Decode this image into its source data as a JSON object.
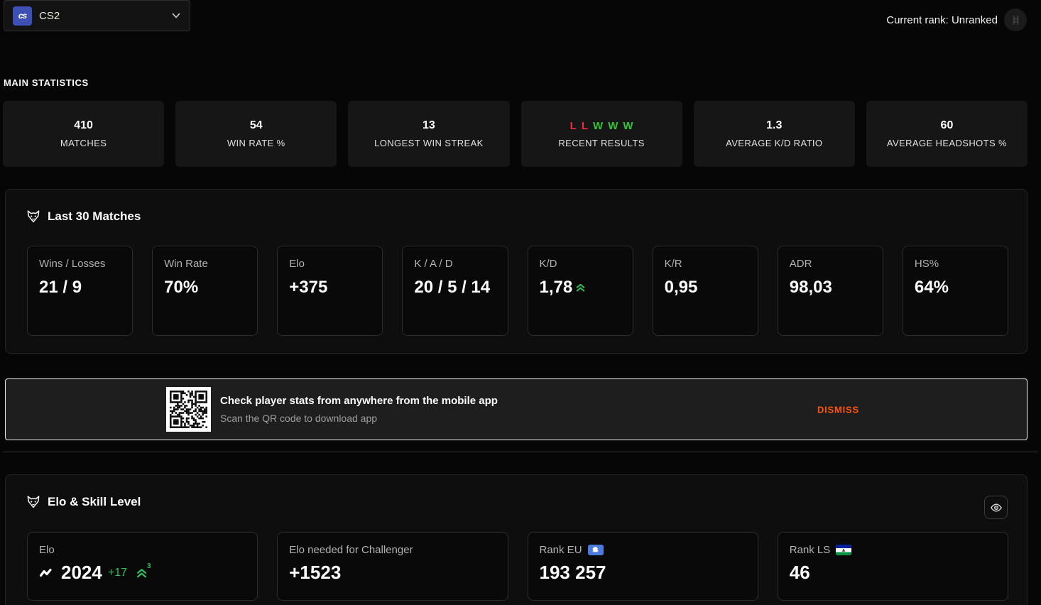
{
  "header": {
    "game_selector": {
      "label": "CS2",
      "icon_text": "cs"
    },
    "current_rank": {
      "text": "Current rank: Unranked"
    }
  },
  "main_statistics": {
    "title": "MAIN STATISTICS",
    "cards": [
      {
        "value": "410",
        "label": "MATCHES"
      },
      {
        "value": "54",
        "label": "WIN RATE %"
      },
      {
        "value": "13",
        "label": "LONGEST WIN STREAK"
      },
      {
        "label": "RECENT RESULTS",
        "results": [
          {
            "letter": "L",
            "type": "loss"
          },
          {
            "letter": "L",
            "type": "loss"
          },
          {
            "letter": "W",
            "type": "win"
          },
          {
            "letter": "W",
            "type": "win"
          },
          {
            "letter": "W",
            "type": "win"
          }
        ]
      },
      {
        "value": "1.3",
        "label": "AVERAGE K/D RATIO"
      },
      {
        "value": "60",
        "label": "AVERAGE HEADSHOTS %"
      }
    ]
  },
  "last_30_matches": {
    "title": "Last 30 Matches",
    "cards": [
      {
        "label": "Wins / Losses",
        "value": "21 / 9"
      },
      {
        "label": "Win Rate",
        "value": "70%"
      },
      {
        "label": "Elo",
        "value": "+375"
      },
      {
        "label": "K / A / D",
        "value": "20 / 5 / 14"
      },
      {
        "label": "K/D",
        "value": "1,78",
        "trend": "up"
      },
      {
        "label": "K/R",
        "value": "0,95"
      },
      {
        "label": "ADR",
        "value": "98,03"
      },
      {
        "label": "HS%",
        "value": "64%"
      }
    ]
  },
  "qr_banner": {
    "title": "Check player stats from anywhere from the mobile app",
    "subtitle": "Scan the QR code to download app",
    "dismiss_label": "DISMISS"
  },
  "elo_skill": {
    "title": "Elo & Skill Level",
    "cards": [
      {
        "label": "Elo",
        "value": "2024",
        "delta": "+17",
        "streak": "3"
      },
      {
        "label": "Elo needed for Challenger",
        "value": "+1523"
      },
      {
        "label": "Rank EU",
        "value": "193 257",
        "flag": "eu-flag"
      },
      {
        "label": "Rank LS",
        "value": "46",
        "flag": "lesotho-flag"
      }
    ]
  },
  "colors": {
    "accent-orange": "#ff5500",
    "win-green": "#33c635",
    "loss-red": "#ee2c3c",
    "pos-green": "#2fbf5d",
    "eu-badge-blue": "#4c7be0",
    "cs2-icon-blue": "#3d51b5"
  }
}
